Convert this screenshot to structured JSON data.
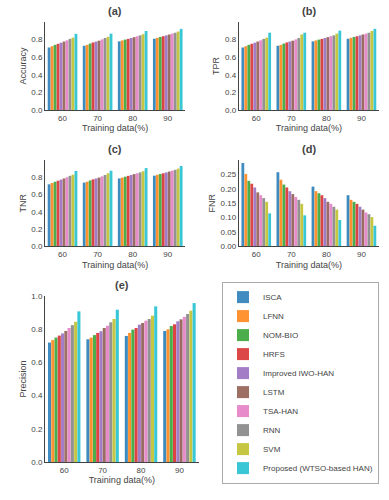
{
  "chart_data": [
    {
      "type": "bar",
      "title": "(a)",
      "x_label": "Training data(%)",
      "y_label": "Accuracy",
      "categories": [
        60,
        70,
        80,
        90
      ],
      "ylim": [
        0.0,
        1.0
      ],
      "yticks": [
        {
          "value": 0.0,
          "label": "0.0"
        },
        0.2,
        0.4,
        0.6,
        0.8
      ],
      "grid": false,
      "series": [
        {
          "name": "ISCA",
          "color": "#1f77b4",
          "values": [
            0.71,
            0.73,
            0.78,
            0.81
          ]
        },
        {
          "name": "LFNN",
          "color": "#ff7f0e",
          "values": [
            0.725,
            0.74,
            0.79,
            0.82
          ]
        },
        {
          "name": "NOM-BIO",
          "color": "#2ca02c",
          "values": [
            0.74,
            0.755,
            0.8,
            0.83
          ]
        },
        {
          "name": "HRFS",
          "color": "#d62728",
          "values": [
            0.752,
            0.768,
            0.808,
            0.838
          ]
        },
        {
          "name": "Improved IWO-HAN",
          "color": "#9467bd",
          "values": [
            0.765,
            0.778,
            0.818,
            0.848
          ]
        },
        {
          "name": "LSTM",
          "color": "#8c564b",
          "values": [
            0.778,
            0.788,
            0.828,
            0.858
          ]
        },
        {
          "name": "TSA-HAN",
          "color": "#e377c2",
          "values": [
            0.792,
            0.802,
            0.838,
            0.868
          ]
        },
        {
          "name": "RNN",
          "color": "#7f7f7f",
          "values": [
            0.808,
            0.818,
            0.848,
            0.878
          ]
        },
        {
          "name": "SVM",
          "color": "#bcbd22",
          "values": [
            0.822,
            0.832,
            0.862,
            0.892
          ]
        },
        {
          "name": "Proposed (WTSO-based HAN)",
          "color": "#17becf",
          "values": [
            0.865,
            0.868,
            0.898,
            0.922
          ]
        }
      ]
    },
    {
      "type": "bar",
      "title": "(b)",
      "x_label": "Training data(%)",
      "y_label": "TPR",
      "categories": [
        60,
        70,
        80,
        90
      ],
      "ylim": [
        0.0,
        1.0
      ],
      "yticks": [
        {
          "value": 0.0,
          "label": "0.0"
        },
        0.2,
        0.4,
        0.6,
        0.8
      ],
      "grid": false,
      "series": [
        {
          "name": "ISCA",
          "color": "#1f77b4",
          "values": [
            0.71,
            0.73,
            0.78,
            0.81
          ]
        },
        {
          "name": "LFNN",
          "color": "#ff7f0e",
          "values": [
            0.725,
            0.74,
            0.79,
            0.82
          ]
        },
        {
          "name": "NOM-BIO",
          "color": "#2ca02c",
          "values": [
            0.74,
            0.755,
            0.8,
            0.83
          ]
        },
        {
          "name": "HRFS",
          "color": "#d62728",
          "values": [
            0.752,
            0.768,
            0.808,
            0.838
          ]
        },
        {
          "name": "Improved IWO-HAN",
          "color": "#9467bd",
          "values": [
            0.765,
            0.778,
            0.818,
            0.848
          ]
        },
        {
          "name": "LSTM",
          "color": "#8c564b",
          "values": [
            0.778,
            0.788,
            0.828,
            0.858
          ]
        },
        {
          "name": "TSA-HAN",
          "color": "#e377c2",
          "values": [
            0.792,
            0.802,
            0.838,
            0.868
          ]
        },
        {
          "name": "RNN",
          "color": "#7f7f7f",
          "values": [
            0.808,
            0.818,
            0.848,
            0.878
          ]
        },
        {
          "name": "SVM",
          "color": "#bcbd22",
          "values": [
            0.822,
            0.858,
            0.868,
            0.898
          ]
        },
        {
          "name": "Proposed (WTSO-based HAN)",
          "color": "#17becf",
          "values": [
            0.878,
            0.878,
            0.902,
            0.922
          ]
        }
      ]
    },
    {
      "type": "bar",
      "title": "(c)",
      "x_label": "Training data(%)",
      "y_label": "TNR",
      "categories": [
        60,
        70,
        80,
        90
      ],
      "ylim": [
        0.0,
        1.0
      ],
      "yticks": [
        {
          "value": 0.0,
          "label": "0.0"
        },
        0.2,
        0.4,
        0.6,
        0.8
      ],
      "grid": false,
      "series": [
        {
          "name": "ISCA",
          "color": "#1f77b4",
          "values": [
            0.72,
            0.74,
            0.788,
            0.82
          ]
        },
        {
          "name": "LFNN",
          "color": "#ff7f0e",
          "values": [
            0.735,
            0.75,
            0.798,
            0.83
          ]
        },
        {
          "name": "NOM-BIO",
          "color": "#2ca02c",
          "values": [
            0.75,
            0.765,
            0.808,
            0.84
          ]
        },
        {
          "name": "HRFS",
          "color": "#d62728",
          "values": [
            0.762,
            0.778,
            0.818,
            0.848
          ]
        },
        {
          "name": "Improved IWO-HAN",
          "color": "#9467bd",
          "values": [
            0.775,
            0.788,
            0.828,
            0.858
          ]
        },
        {
          "name": "LSTM",
          "color": "#8c564b",
          "values": [
            0.788,
            0.798,
            0.838,
            0.868
          ]
        },
        {
          "name": "TSA-HAN",
          "color": "#e377c2",
          "values": [
            0.802,
            0.812,
            0.848,
            0.878
          ]
        },
        {
          "name": "RNN",
          "color": "#7f7f7f",
          "values": [
            0.818,
            0.828,
            0.858,
            0.888
          ]
        },
        {
          "name": "SVM",
          "color": "#bcbd22",
          "values": [
            0.832,
            0.848,
            0.872,
            0.902
          ]
        },
        {
          "name": "Proposed (WTSO-based HAN)",
          "color": "#17becf",
          "values": [
            0.875,
            0.878,
            0.908,
            0.932
          ]
        }
      ]
    },
    {
      "type": "bar",
      "title": "(d)",
      "x_label": "Training data(%)",
      "y_label": "FNR",
      "categories": [
        60,
        70,
        80,
        90
      ],
      "ylim": [
        0.0,
        0.3
      ],
      "yticks": [
        {
          "value": 0.0,
          "label": "0.00"
        },
        {
          "value": 0.05,
          "label": "0.05"
        },
        {
          "value": 0.1,
          "label": "0.10"
        },
        {
          "value": 0.15,
          "label": "0.15"
        },
        {
          "value": 0.2,
          "label": "0.20"
        },
        {
          "value": 0.25,
          "label": "0.25"
        }
      ],
      "grid": false,
      "series": [
        {
          "name": "ISCA",
          "color": "#1f77b4",
          "values": [
            0.29,
            0.258,
            0.208,
            0.178
          ]
        },
        {
          "name": "LFNN",
          "color": "#ff7f0e",
          "values": [
            0.252,
            0.232,
            0.192,
            0.162
          ]
        },
        {
          "name": "NOM-BIO",
          "color": "#2ca02c",
          "values": [
            0.228,
            0.215,
            0.185,
            0.155
          ]
        },
        {
          "name": "HRFS",
          "color": "#d62728",
          "values": [
            0.218,
            0.205,
            0.178,
            0.148
          ]
        },
        {
          "name": "Improved IWO-HAN",
          "color": "#9467bd",
          "values": [
            0.205,
            0.192,
            0.168,
            0.138
          ]
        },
        {
          "name": "LSTM",
          "color": "#8c564b",
          "values": [
            0.188,
            0.182,
            0.155,
            0.128
          ]
        },
        {
          "name": "TSA-HAN",
          "color": "#e377c2",
          "values": [
            0.178,
            0.172,
            0.148,
            0.118
          ]
        },
        {
          "name": "RNN",
          "color": "#7f7f7f",
          "values": [
            0.168,
            0.162,
            0.138,
            0.112
          ]
        },
        {
          "name": "SVM",
          "color": "#bcbd22",
          "values": [
            0.155,
            0.148,
            0.128,
            0.102
          ]
        },
        {
          "name": "Proposed (WTSO-based HAN)",
          "color": "#17becf",
          "values": [
            0.115,
            0.108,
            0.092,
            0.072
          ]
        }
      ]
    },
    {
      "type": "bar",
      "title": "(e)",
      "x_label": "Training data(%)",
      "y_label": "Precision",
      "categories": [
        60,
        70,
        80,
        90
      ],
      "ylim": [
        0.0,
        1.0
      ],
      "yticks": [
        {
          "value": 0.0,
          "label": "0.0"
        },
        0.2,
        0.4,
        0.6,
        0.8,
        {
          "value": 1.0,
          "label": "1.0"
        }
      ],
      "grid": false,
      "series": [
        {
          "name": "ISCA",
          "color": "#1f77b4",
          "values": [
            0.72,
            0.74,
            0.76,
            0.79
          ]
        },
        {
          "name": "LFNN",
          "color": "#ff7f0e",
          "values": [
            0.735,
            0.75,
            0.778,
            0.8
          ]
        },
        {
          "name": "NOM-BIO",
          "color": "#2ca02c",
          "values": [
            0.75,
            0.765,
            0.798,
            0.82
          ]
        },
        {
          "name": "HRFS",
          "color": "#d62728",
          "values": [
            0.762,
            0.778,
            0.808,
            0.83
          ]
        },
        {
          "name": "Improved IWO-HAN",
          "color": "#9467bd",
          "values": [
            0.775,
            0.788,
            0.828,
            0.848
          ]
        },
        {
          "name": "LSTM",
          "color": "#8c564b",
          "values": [
            0.79,
            0.808,
            0.838,
            0.86
          ]
        },
        {
          "name": "TSA-HAN",
          "color": "#e377c2",
          "values": [
            0.808,
            0.822,
            0.852,
            0.875
          ]
        },
        {
          "name": "RNN",
          "color": "#7f7f7f",
          "values": [
            0.825,
            0.842,
            0.862,
            0.892
          ]
        },
        {
          "name": "SVM",
          "color": "#bcbd22",
          "values": [
            0.845,
            0.862,
            0.882,
            0.912
          ]
        },
        {
          "name": "Proposed (WTSO-based HAN)",
          "color": "#17becf",
          "values": [
            0.908,
            0.918,
            0.938,
            0.958
          ]
        }
      ]
    }
  ]
}
